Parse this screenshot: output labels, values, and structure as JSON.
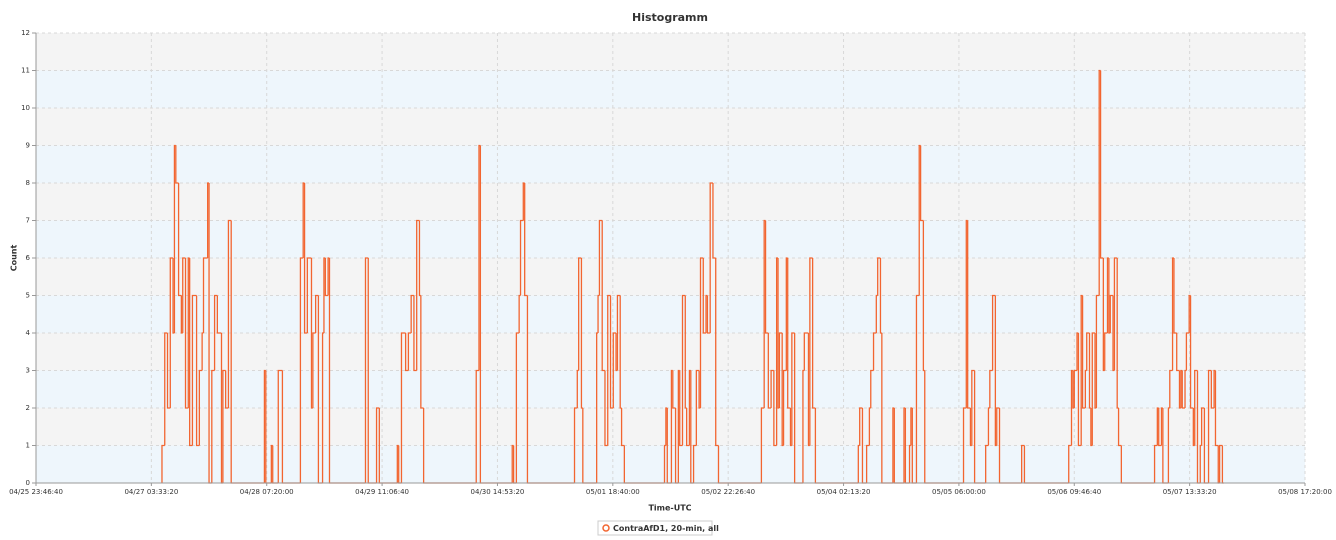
{
  "chart_data": {
    "type": "step",
    "title": "Histogramm",
    "x_label": "Time-UTC",
    "y_label": "Count",
    "xlim": [
      "04/25 23:46:40",
      "05/08 17:20:00"
    ],
    "xticks": [
      "04/25 23:46:40",
      "04/27 03:33:20",
      "04/28 07:20:00",
      "04/29 11:06:40",
      "04/30 14:53:20",
      "05/01 18:40:00",
      "05/02 22:26:40",
      "05/04 02:13:20",
      "05/05 06:00:00",
      "05/06 09:46:40",
      "05/07 13:33:20",
      "05/08 17:20:00"
    ],
    "ylim": [
      0,
      12
    ],
    "yticks": [
      0,
      1,
      2,
      3,
      4,
      5,
      6,
      7,
      8,
      9,
      10,
      11,
      12
    ],
    "grid": true,
    "band_colors": [
      "#eef6fc",
      "#f4f4f4"
    ],
    "series": [
      {
        "name": "ContraAfD1, 20-min, all",
        "color": "#f26530",
        "x": [
          "04/27 06:06:40",
          "04/27 06:46:40",
          "04/27 07:26:40",
          "04/27 08:06:40",
          "04/27 08:46:40",
          "04/27 09:06:40",
          "04/27 09:26:40",
          "04/27 10:06:40",
          "04/27 10:46:40",
          "04/27 11:06:40",
          "04/27 11:46:40",
          "04/27 12:26:40",
          "04/27 12:46:40",
          "04/27 13:26:40",
          "04/27 14:26:40",
          "04/27 15:06:40",
          "04/27 15:46:40",
          "04/27 16:06:40",
          "04/27 17:06:40",
          "04/27 17:26:40",
          "04/27 18:06:40",
          "04/27 18:46:40",
          "04/27 19:26:40",
          "04/27 20:26:40",
          "04/27 20:46:40",
          "04/27 21:26:40",
          "04/27 22:06:40",
          "04/27 22:46:40",
          "04/28 06:46:40",
          "04/28 07:06:40",
          "04/28 08:26:40",
          "04/28 08:46:40",
          "04/28 10:06:40",
          "04/28 11:06:40",
          "04/28 15:26:40",
          "04/28 16:06:40",
          "04/28 16:26:40",
          "04/28 17:06:40",
          "04/28 18:06:40",
          "04/28 18:26:40",
          "04/28 19:06:40",
          "04/28 19:46:40",
          "04/28 20:46:40",
          "04/28 21:06:40",
          "04/28 21:26:40",
          "04/28 22:06:40",
          "04/28 22:26:40",
          "04/29 07:06:40",
          "04/29 07:46:40",
          "04/29 09:46:40",
          "04/29 10:26:40",
          "04/29 14:46:40",
          "04/29 15:06:40",
          "04/29 15:46:40",
          "04/29 16:46:40",
          "04/29 17:26:40",
          "04/29 18:06:40",
          "04/29 18:46:40",
          "04/29 19:26:40",
          "04/29 20:06:40",
          "04/29 20:26:40",
          "04/29 21:06:40",
          "04/30 09:46:40",
          "04/30 10:26:40",
          "04/30 10:46:40",
          "04/30 18:26:40",
          "04/30 18:46:40",
          "04/30 19:26:40",
          "04/30 20:06:40",
          "04/30 20:26:40",
          "04/30 21:06:40",
          "04/30 21:26:40",
          "04/30 22:06:40",
          "05/01 09:26:40",
          "05/01 10:06:40",
          "05/01 10:26:40",
          "05/01 11:06:40",
          "05/01 11:26:40",
          "05/01 14:46:40",
          "05/01 15:06:40",
          "05/01 15:26:40",
          "05/01 16:06:40",
          "05/01 16:46:40",
          "05/01 17:26:40",
          "05/01 18:06:40",
          "05/01 18:46:40",
          "05/01 19:26:40",
          "05/01 19:46:40",
          "05/01 20:26:40",
          "05/01 20:46:40",
          "05/01 21:26:40",
          "05/02 07:06:40",
          "05/02 07:26:40",
          "05/02 07:46:40",
          "05/02 08:46:40",
          "05/02 09:06:40",
          "05/02 09:46:40",
          "05/02 10:26:40",
          "05/02 10:46:40",
          "05/02 11:26:40",
          "05/02 12:06:40",
          "05/02 12:26:40",
          "05/02 13:06:40",
          "05/02 13:26:40",
          "05/02 14:06:40",
          "05/02 14:46:40",
          "05/02 15:26:40",
          "05/02 15:46:40",
          "05/02 16:26:40",
          "05/02 17:06:40",
          "05/02 17:26:40",
          "05/02 18:06:40",
          "05/02 18:46:40",
          "05/02 19:26:40",
          "05/02 20:06:40",
          "05/03 06:26:40",
          "05/03 07:06:40",
          "05/03 07:26:40",
          "05/03 08:06:40",
          "05/03 08:46:40",
          "05/03 09:26:40",
          "05/03 10:06:40",
          "05/03 10:26:40",
          "05/03 10:46:40",
          "05/03 11:26:40",
          "05/03 11:46:40",
          "05/03 12:26:40",
          "05/03 12:46:40",
          "05/03 13:26:40",
          "05/03 13:46:40",
          "05/03 14:26:40",
          "05/03 16:26:40",
          "05/03 16:46:40",
          "05/03 17:46:40",
          "05/03 18:06:40",
          "05/03 18:46:40",
          "05/03 19:26:40",
          "05/04 05:46:40",
          "05/04 06:06:40",
          "05/04 06:46:40",
          "05/04 07:46:40",
          "05/04 08:26:40",
          "05/04 08:46:40",
          "05/04 09:26:40",
          "05/04 10:06:40",
          "05/04 10:26:40",
          "05/04 11:06:40",
          "05/04 11:26:40",
          "05/04 14:06:40",
          "05/04 14:26:40",
          "05/04 16:46:40",
          "05/04 17:06:40",
          "05/04 18:06:40",
          "05/04 18:26:40",
          "05/04 18:46:40",
          "05/04 19:46:40",
          "05/04 20:26:40",
          "05/04 20:46:40",
          "05/04 21:26:40",
          "05/04 21:46:40",
          "05/05 07:06:40",
          "05/05 07:46:40",
          "05/05 08:06:40",
          "05/05 08:46:40",
          "05/05 09:06:40",
          "05/05 09:46:40",
          "05/05 12:26:40",
          "05/05 13:06:40",
          "05/05 13:26:40",
          "05/05 14:06:40",
          "05/05 14:46:40",
          "05/05 15:06:40",
          "05/05 15:46:40",
          "05/05 21:06:40",
          "05/05 21:46:40",
          "05/06 08:26:40",
          "05/06 09:06:40",
          "05/06 09:26:40",
          "05/06 09:46:40",
          "05/06 10:26:40",
          "05/06 10:46:40",
          "05/06 11:26:40",
          "05/06 11:46:40",
          "05/06 12:26:40",
          "05/06 12:46:40",
          "05/06 13:26:40",
          "05/06 13:46:40",
          "05/06 14:06:40",
          "05/06 14:46:40",
          "05/06 15:06:40",
          "05/06 15:46:40",
          "05/06 16:06:40",
          "05/06 16:46:40",
          "05/06 17:06:40",
          "05/06 17:46:40",
          "05/06 18:06:40",
          "05/06 18:26:40",
          "05/06 19:06:40",
          "05/06 19:26:40",
          "05/06 20:06:40",
          "05/06 20:26:40",
          "05/06 21:06:40",
          "05/07 05:06:40",
          "05/07 05:46:40",
          "05/07 06:06:40",
          "05/07 06:46:40",
          "05/07 07:06:40",
          "05/07 08:26:40",
          "05/07 08:46:40",
          "05/07 09:26:40",
          "05/07 09:46:40",
          "05/07 10:26:40",
          "05/07 11:06:40",
          "05/07 11:26:40",
          "05/07 11:46:40",
          "05/07 12:26:40",
          "05/07 12:46:40",
          "05/07 13:26:40",
          "05/07 13:46:40",
          "05/07 14:26:40",
          "05/07 14:46:40",
          "05/07 15:26:40",
          "05/07 16:06:40",
          "05/07 16:26:40",
          "05/07 17:06:40",
          "05/07 18:06:40",
          "05/07 18:46:40",
          "05/07 19:26:40",
          "05/07 19:46:40",
          "05/07 20:26:40",
          "05/07 20:46:40",
          "05/07 21:26:40"
        ],
        "values": [
          1,
          4,
          2,
          6,
          4,
          9,
          8,
          5,
          4,
          6,
          2,
          6,
          1,
          5,
          1,
          3,
          4,
          6,
          8,
          0,
          3,
          5,
          4,
          0,
          3,
          2,
          7,
          0,
          3,
          0,
          1,
          0,
          3,
          0,
          6,
          8,
          4,
          6,
          2,
          4,
          5,
          0,
          4,
          6,
          5,
          6,
          0,
          6,
          0,
          2,
          0,
          1,
          0,
          4,
          3,
          4,
          5,
          3,
          7,
          5,
          2,
          0,
          3,
          9,
          0,
          1,
          0,
          4,
          5,
          7,
          8,
          5,
          0,
          2,
          3,
          6,
          2,
          0,
          4,
          5,
          7,
          3,
          1,
          5,
          2,
          4,
          3,
          5,
          2,
          1,
          0,
          1,
          2,
          0,
          3,
          2,
          0,
          3,
          1,
          5,
          2,
          1,
          3,
          0,
          1,
          3,
          2,
          6,
          4,
          5,
          4,
          8,
          6,
          1,
          0,
          2,
          7,
          4,
          2,
          3,
          1,
          6,
          2,
          4,
          1,
          3,
          6,
          2,
          1,
          4,
          0,
          3,
          4,
          1,
          6,
          2,
          0,
          1,
          2,
          0,
          1,
          2,
          3,
          4,
          5,
          6,
          4,
          0,
          2,
          0,
          2,
          0,
          1,
          2,
          0,
          5,
          9,
          7,
          3,
          0,
          2,
          7,
          2,
          1,
          3,
          0,
          1,
          2,
          3,
          5,
          1,
          2,
          0,
          1,
          0,
          1,
          3,
          2,
          3,
          4,
          1,
          5,
          2,
          3,
          4,
          2,
          1,
          4,
          2,
          5,
          11,
          6,
          3,
          4,
          6,
          4,
          5,
          3,
          6,
          2,
          1,
          0,
          1,
          2,
          1,
          2,
          0,
          2,
          3,
          6,
          4,
          3,
          2,
          3,
          2,
          3,
          4,
          5,
          2,
          1,
          3,
          0,
          1,
          2,
          0,
          3,
          2,
          3,
          1,
          0,
          1,
          0
        ]
      }
    ]
  }
}
